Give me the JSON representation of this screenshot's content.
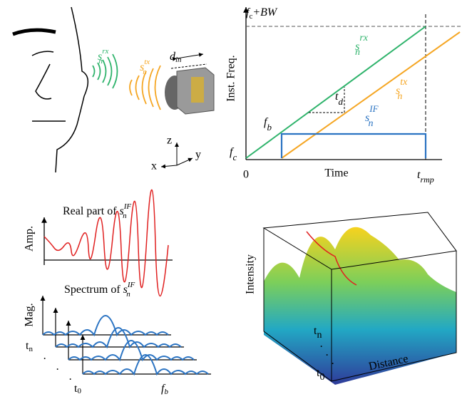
{
  "face_panel": {
    "rx_label": {
      "base": "s",
      "sub": "n",
      "sup": "rx"
    },
    "tx_label": {
      "base": "s",
      "sub": "n",
      "sup": "tx"
    },
    "distance_label": {
      "base": "d",
      "sub": "ln"
    },
    "axis_z": "z",
    "axis_x": "x",
    "axis_y": "y"
  },
  "chirp_panel": {
    "top_label": {
      "base": "f",
      "sub": "c",
      "rest": "+BW"
    },
    "y_label": "Inst. Freq.",
    "rx_label": {
      "base": "s",
      "sub": "n",
      "sup": "rx"
    },
    "tx_label": {
      "base": "s",
      "sub": "n",
      "sup": "tx"
    },
    "delay_label": {
      "base": "t",
      "sub": "d"
    },
    "if_label": {
      "base": "s",
      "sub": "n",
      "sup": "IF"
    },
    "beat_label": {
      "base": "f",
      "sub": "b"
    },
    "origin_label": {
      "base": "f",
      "sub": "c"
    },
    "zero_label": "0",
    "x_label": "Time",
    "ramp_label": {
      "base": "t",
      "sub": "rmp"
    }
  },
  "signal_panel": {
    "title": {
      "text": "Real part of ",
      "base": "s",
      "sub": "n",
      "sup": "IF"
    },
    "y_label": "Amp."
  },
  "spectrum_panel": {
    "title": {
      "text": "Spectrum of ",
      "base": "s",
      "sub": "n",
      "sup": "IF"
    },
    "y_label": "Mag.",
    "tn_label": {
      "base": "t",
      "sub": "n"
    },
    "dots": "·",
    "t0_label": {
      "base": "t",
      "sub": "0"
    },
    "beat_label": {
      "base": "f",
      "sub": "b"
    }
  },
  "surface_panel": {
    "z_label": "Intensity",
    "tn_label": {
      "base": "t",
      "sub": "n"
    },
    "dots": "·",
    "t0_label": {
      "base": "t",
      "sub": "0"
    },
    "x_label": "Distance"
  }
}
